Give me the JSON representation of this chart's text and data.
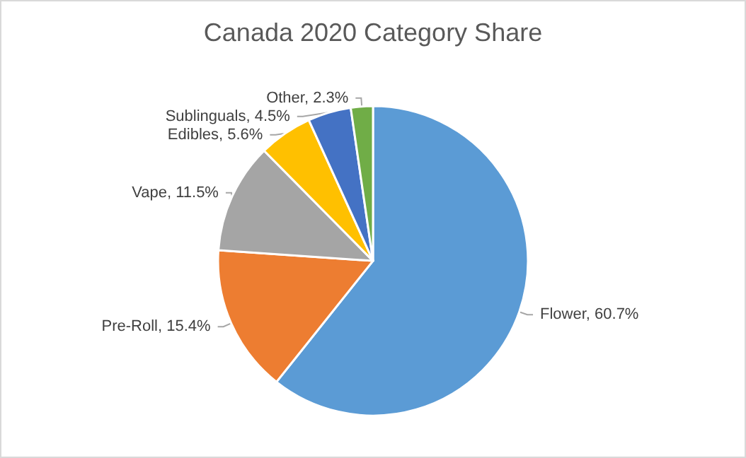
{
  "chart_data": {
    "type": "pie",
    "title": "Canada 2020 Category Share",
    "categories": [
      "Flower",
      "Pre-Roll",
      "Vape",
      "Edibles",
      "Sublinguals",
      "Other"
    ],
    "values": [
      60.7,
      15.4,
      11.5,
      5.6,
      4.5,
      2.3
    ],
    "colors": [
      "#5b9bd5",
      "#ed7d31",
      "#a5a5a5",
      "#ffc000",
      "#4472c4",
      "#70ad47"
    ],
    "value_labels": [
      "60.7%",
      "15.4%",
      "11.5%",
      "5.6%",
      "4.5%",
      "2.3%"
    ],
    "legend": false
  }
}
